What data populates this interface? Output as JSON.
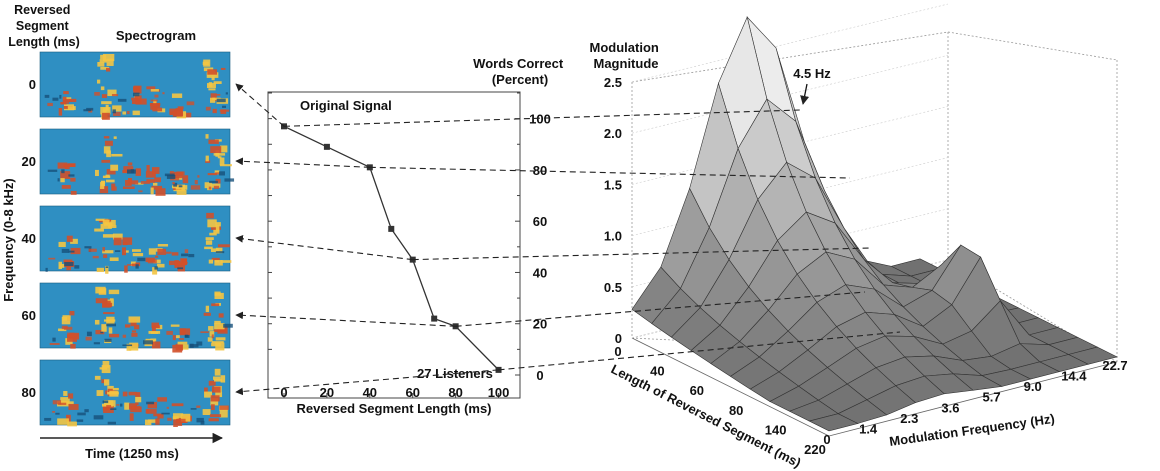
{
  "chart_data": [
    {
      "type": "heatmap",
      "panel": "spectrograms",
      "column_headers": {
        "segment_length": "Reversed\nSegment\nLength (ms)",
        "spectrogram": "Spectrogram"
      },
      "ylabel": "Frequency (0-8 kHz)",
      "xlabel": "Time (1250 ms)",
      "rows": [
        "0",
        "20",
        "40",
        "60",
        "80"
      ]
    },
    {
      "type": "line",
      "panel": "intelligibility",
      "title": "Words Correct\n(Percent)",
      "xlabel": "Reversed Segment Length (ms)",
      "x_ticks": [
        "0",
        "20",
        "40",
        "60",
        "80",
        "100"
      ],
      "y_ticks": [
        "0",
        "20",
        "40",
        "60",
        "80",
        "100"
      ],
      "xlim": [
        0,
        110
      ],
      "ylim": [
        0,
        110
      ],
      "x": [
        0,
        20,
        40,
        50,
        60,
        70,
        80,
        100
      ],
      "y": [
        97,
        89,
        81,
        57,
        45,
        22,
        19,
        2
      ],
      "annotations": {
        "start": "Original Signal",
        "end": "27 Listeners"
      }
    },
    {
      "type": "surface",
      "panel": "modulation-spectrum",
      "title": "Modulation\nMagnitude",
      "xlabel": "Length of Reversed Segment (ms)",
      "ylabel": "Modulation Frequency (Hz)",
      "z_ticks": [
        "0",
        "0.5",
        "1.0",
        "1.5",
        "2.0",
        "2.5"
      ],
      "segment_ticks": [
        "0",
        "40",
        "60",
        "80",
        "140",
        "220"
      ],
      "frequency_ticks": [
        "0",
        "1.4",
        "2.3",
        "3.6",
        "5.7",
        "9.0",
        "14.4",
        "22.7"
      ],
      "zlim": [
        0,
        2.5
      ],
      "annotation": "4.5 Hz"
    }
  ],
  "colors": {
    "spec_bg": "#2f8fc2",
    "spec_hot": "#f4c542",
    "spec_mid": "#d2502a",
    "line": "#333333",
    "surface": "#bdbdbd"
  }
}
